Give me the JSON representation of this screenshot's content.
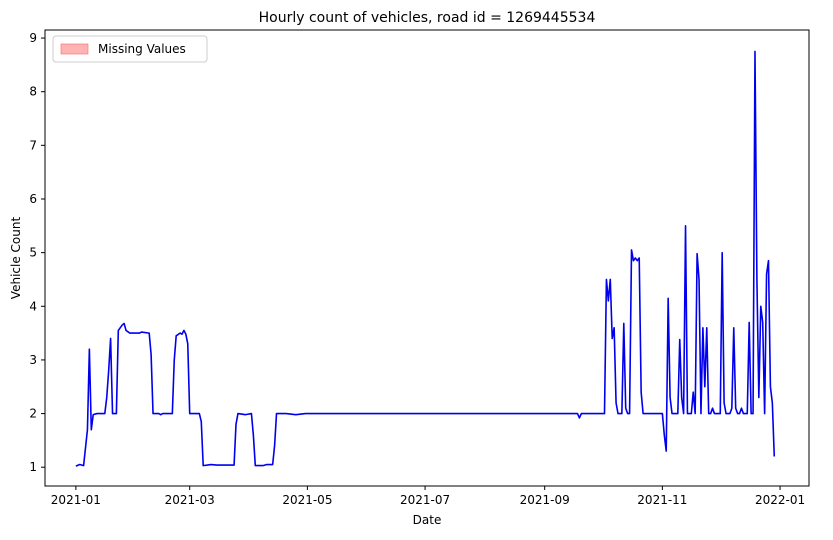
{
  "chart_data": {
    "type": "line",
    "title": "Hourly count of vehicles, road id = 1269445534",
    "xlabel": "Date",
    "ylabel": "Vehicle Count",
    "xlim": [
      "2020-12-16",
      "2022-01-16"
    ],
    "ylim": [
      0.65,
      9.15
    ],
    "x_ticks": [
      "2021-01",
      "2021-03",
      "2021-05",
      "2021-07",
      "2021-09",
      "2021-11",
      "2022-01"
    ],
    "y_ticks": [
      1,
      2,
      3,
      4,
      5,
      6,
      7,
      8,
      9
    ],
    "grid": false,
    "legend": {
      "placement": "top-left",
      "entries": [
        {
          "label": "Missing Values",
          "color": "#ff9999"
        }
      ]
    },
    "series": [
      {
        "name": "",
        "color": "#0000ee",
        "points": [
          [
            "2021-01-01",
            1.02
          ],
          [
            "2021-01-03",
            1.05
          ],
          [
            "2021-01-05",
            1.03
          ],
          [
            "2021-01-07",
            1.7
          ],
          [
            "2021-01-08",
            3.2
          ],
          [
            "2021-01-09",
            1.7
          ],
          [
            "2021-01-10",
            1.98
          ],
          [
            "2021-01-12",
            2.0
          ],
          [
            "2021-01-16",
            2.0
          ],
          [
            "2021-01-17",
            2.3
          ],
          [
            "2021-01-18",
            2.8
          ],
          [
            "2021-01-19",
            3.4
          ],
          [
            "2021-01-20",
            2.0
          ],
          [
            "2021-01-22",
            2.0
          ],
          [
            "2021-01-23",
            3.55
          ],
          [
            "2021-01-25",
            3.65
          ],
          [
            "2021-01-26",
            3.68
          ],
          [
            "2021-01-27",
            3.55
          ],
          [
            "2021-01-29",
            3.5
          ],
          [
            "2021-02-03",
            3.5
          ],
          [
            "2021-02-04",
            3.52
          ],
          [
            "2021-02-08",
            3.5
          ],
          [
            "2021-02-09",
            3.1
          ],
          [
            "2021-02-10",
            2.0
          ],
          [
            "2021-02-13",
            2.0
          ],
          [
            "2021-02-14",
            1.98
          ],
          [
            "2021-02-15",
            2.0
          ],
          [
            "2021-02-20",
            2.0
          ],
          [
            "2021-02-21",
            3.0
          ],
          [
            "2021-02-22",
            3.45
          ],
          [
            "2021-02-24",
            3.5
          ],
          [
            "2021-02-25",
            3.48
          ],
          [
            "2021-02-26",
            3.55
          ],
          [
            "2021-02-27",
            3.48
          ],
          [
            "2021-02-28",
            3.3
          ],
          [
            "2021-03-01",
            2.0
          ],
          [
            "2021-03-06",
            2.0
          ],
          [
            "2021-03-07",
            1.85
          ],
          [
            "2021-03-08",
            1.03
          ],
          [
            "2021-03-12",
            1.05
          ],
          [
            "2021-03-15",
            1.04
          ],
          [
            "2021-03-20",
            1.04
          ],
          [
            "2021-03-24",
            1.04
          ],
          [
            "2021-03-25",
            1.8
          ],
          [
            "2021-03-26",
            2.0
          ],
          [
            "2021-03-30",
            1.98
          ],
          [
            "2021-04-02",
            2.0
          ],
          [
            "2021-04-03",
            1.6
          ],
          [
            "2021-04-04",
            1.03
          ],
          [
            "2021-04-08",
            1.03
          ],
          [
            "2021-04-10",
            1.05
          ],
          [
            "2021-04-13",
            1.05
          ],
          [
            "2021-04-14",
            1.4
          ],
          [
            "2021-04-15",
            2.0
          ],
          [
            "2021-04-20",
            2.0
          ],
          [
            "2021-04-25",
            1.98
          ],
          [
            "2021-04-30",
            2.0
          ],
          [
            "2021-09-18",
            2.0
          ],
          [
            "2021-09-19",
            1.92
          ],
          [
            "2021-09-20",
            2.0
          ],
          [
            "2021-10-02",
            2.0
          ],
          [
            "2021-10-03",
            4.5
          ],
          [
            "2021-10-04",
            4.1
          ],
          [
            "2021-10-05",
            4.5
          ],
          [
            "2021-10-06",
            3.4
          ],
          [
            "2021-10-07",
            3.6
          ],
          [
            "2021-10-08",
            2.2
          ],
          [
            "2021-10-09",
            2.0
          ],
          [
            "2021-10-11",
            2.0
          ],
          [
            "2021-10-12",
            3.68
          ],
          [
            "2021-10-13",
            2.1
          ],
          [
            "2021-10-14",
            2.0
          ],
          [
            "2021-10-15",
            2.0
          ],
          [
            "2021-10-16",
            5.05
          ],
          [
            "2021-10-17",
            4.85
          ],
          [
            "2021-10-18",
            4.9
          ],
          [
            "2021-10-19",
            4.85
          ],
          [
            "2021-10-20",
            4.9
          ],
          [
            "2021-10-21",
            2.4
          ],
          [
            "2021-10-22",
            2.0
          ],
          [
            "2021-11-01",
            2.0
          ],
          [
            "2021-11-02",
            1.6
          ],
          [
            "2021-11-03",
            1.3
          ],
          [
            "2021-11-04",
            4.15
          ],
          [
            "2021-11-05",
            2.3
          ],
          [
            "2021-11-06",
            2.0
          ],
          [
            "2021-11-07",
            2.0
          ],
          [
            "2021-11-09",
            2.0
          ],
          [
            "2021-11-10",
            3.38
          ],
          [
            "2021-11-11",
            2.3
          ],
          [
            "2021-11-12",
            2.0
          ],
          [
            "2021-11-13",
            5.5
          ],
          [
            "2021-11-14",
            2.0
          ],
          [
            "2021-11-16",
            2.0
          ],
          [
            "2021-11-17",
            2.4
          ],
          [
            "2021-11-18",
            2.0
          ],
          [
            "2021-11-19",
            4.98
          ],
          [
            "2021-11-20",
            4.5
          ],
          [
            "2021-11-21",
            2.0
          ],
          [
            "2021-11-22",
            3.6
          ],
          [
            "2021-11-23",
            2.5
          ],
          [
            "2021-11-24",
            3.6
          ],
          [
            "2021-11-25",
            2.0
          ],
          [
            "2021-11-26",
            2.0
          ],
          [
            "2021-11-27",
            2.1
          ],
          [
            "2021-11-28",
            2.0
          ],
          [
            "2021-12-01",
            2.0
          ],
          [
            "2021-12-02",
            5.0
          ],
          [
            "2021-12-03",
            2.2
          ],
          [
            "2021-12-04",
            2.0
          ],
          [
            "2021-12-05",
            2.0
          ],
          [
            "2021-12-06",
            2.0
          ],
          [
            "2021-12-07",
            2.1
          ],
          [
            "2021-12-08",
            3.6
          ],
          [
            "2021-12-09",
            2.1
          ],
          [
            "2021-12-10",
            2.0
          ],
          [
            "2021-12-11",
            2.0
          ],
          [
            "2021-12-12",
            2.1
          ],
          [
            "2021-12-13",
            2.0
          ],
          [
            "2021-12-14",
            2.0
          ],
          [
            "2021-12-15",
            2.0
          ],
          [
            "2021-12-16",
            3.7
          ],
          [
            "2021-12-17",
            2.0
          ],
          [
            "2021-12-18",
            2.0
          ],
          [
            "2021-12-19",
            8.75
          ],
          [
            "2021-12-20",
            4.5
          ],
          [
            "2021-12-21",
            2.3
          ],
          [
            "2021-12-22",
            4.0
          ],
          [
            "2021-12-23",
            3.7
          ],
          [
            "2021-12-24",
            2.0
          ],
          [
            "2021-12-25",
            4.6
          ],
          [
            "2021-12-26",
            4.85
          ],
          [
            "2021-12-27",
            2.5
          ],
          [
            "2021-12-28",
            2.2
          ],
          [
            "2021-12-29",
            1.2
          ]
        ]
      }
    ]
  }
}
